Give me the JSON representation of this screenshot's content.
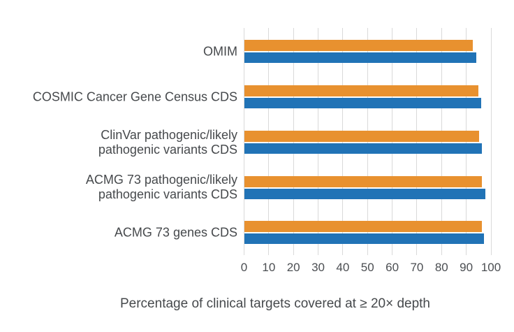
{
  "chart_data": {
    "type": "bar",
    "orientation": "horizontal",
    "title": "",
    "categories": [
      "OMIM",
      "COSMIC Cancer Gene Census CDS",
      "ClinVar pathogenic/likely pathogenic variants CDS",
      "ACMG 73 pathogenic/likely pathogenic variants CDS",
      "ACMG 73 genes CDS"
    ],
    "category_label_lines": [
      [
        "OMIM"
      ],
      [
        "COSMIC Cancer Gene Census CDS"
      ],
      [
        "ClinVar pathogenic/likely",
        "pathogenic variants CDS"
      ],
      [
        "ACMG 73 pathogenic/likely",
        "pathogenic variants CDS"
      ],
      [
        "ACMG 73 genes CDS"
      ]
    ],
    "series": [
      {
        "name": "orange-series",
        "color": "#E8912F",
        "values": [
          92.6,
          94.8,
          95.1,
          96.2,
          96.2
        ]
      },
      {
        "name": "blue-series",
        "color": "#2173B6",
        "values": [
          94.0,
          95.9,
          96.4,
          97.6,
          97.3
        ]
      }
    ],
    "xlabel": "Percentage of clinical targets covered at ≥ 20× depth",
    "xlim": [
      0,
      100
    ],
    "xticks": [
      "0",
      "10",
      "20",
      "30",
      "40",
      "50",
      "60",
      "70",
      "80",
      "90",
      "100"
    ],
    "grid": true,
    "legend_position": "none",
    "colors": {
      "grid": "#d9d9d9",
      "tick_label": "#4b4e52",
      "category_label": "#46494c",
      "axis_label": "#46494c",
      "background": "#ffffff"
    }
  }
}
